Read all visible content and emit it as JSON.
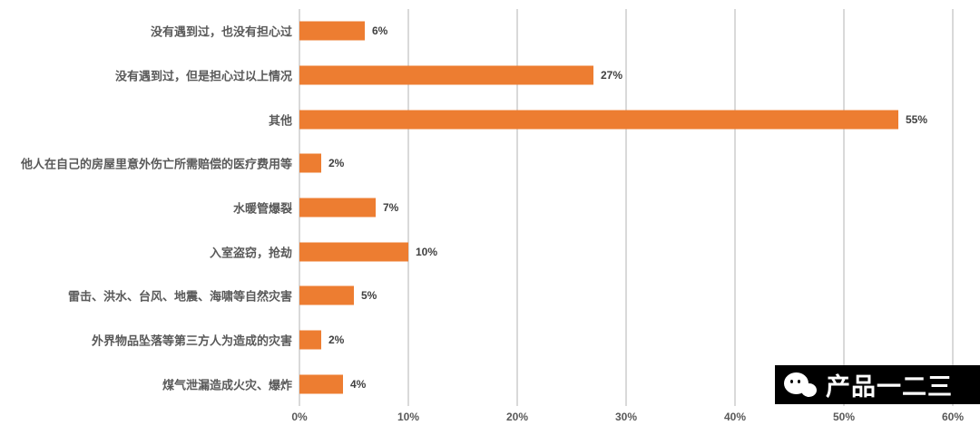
{
  "chart_data": {
    "type": "bar",
    "orientation": "horizontal",
    "title": "",
    "xlabel": "",
    "ylabel": "",
    "categories": [
      "没有遇到过，也没有担心过",
      "没有遇到过，但是担心过以上情况",
      "其他",
      "他人在自己的房屋里意外伤亡所需赔偿的医疗费用等",
      "水暖管爆裂",
      "入室盗窃，抢劫",
      "雷击、洪水、台风、地震、海啸等自然灾害",
      "外界物品坠落等第三方人为造成的灾害",
      "煤气泄漏造成火灾、爆炸"
    ],
    "values": [
      6,
      27,
      55,
      2,
      7,
      10,
      5,
      2,
      4
    ],
    "value_labels": [
      "6%",
      "27%",
      "55%",
      "2%",
      "7%",
      "10%",
      "5%",
      "2%",
      "4%"
    ],
    "x_ticks": [
      "0%",
      "10%",
      "20%",
      "30%",
      "40%",
      "50%",
      "60%"
    ],
    "xlim": [
      0,
      60
    ],
    "grid": "vertical",
    "legend": "none",
    "bar_color": "#ED7D31",
    "gridline_color": "#D9D9D9",
    "label_color": "#595959",
    "value_color": "#404040"
  },
  "watermark": {
    "text": "产品一二三",
    "icon": "wechat-icon",
    "bg_color": "#000000",
    "text_color": "#FFFFFF"
  }
}
